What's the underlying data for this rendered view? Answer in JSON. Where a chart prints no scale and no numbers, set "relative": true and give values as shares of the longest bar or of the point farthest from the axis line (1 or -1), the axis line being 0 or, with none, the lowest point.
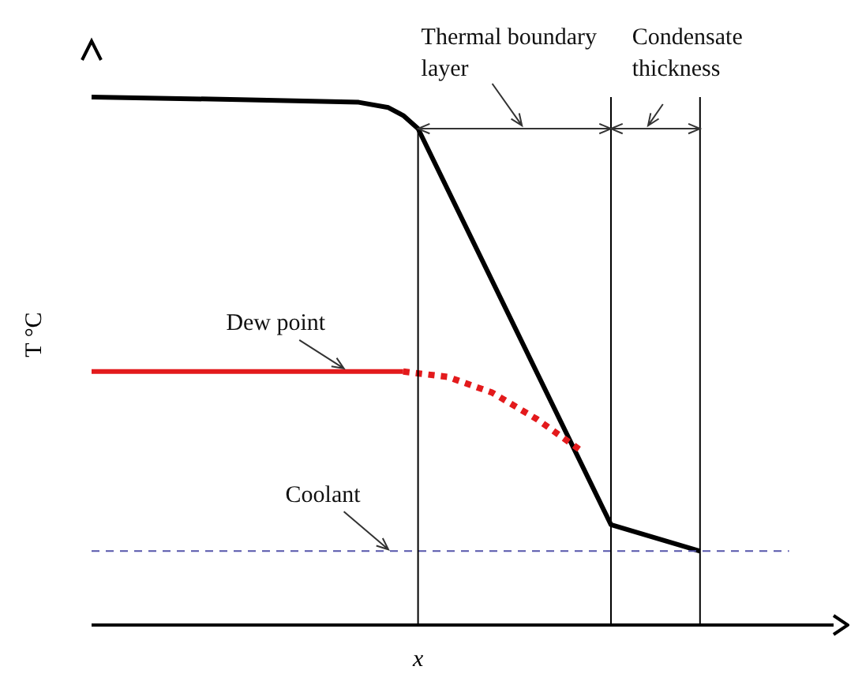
{
  "chart_data": {
    "type": "line",
    "relative": true,
    "ylabel": "T °C",
    "xlabel": "x",
    "categories": [
      null,
      null,
      null,
      null,
      null,
      null,
      null,
      null,
      null,
      null,
      null,
      null,
      null,
      null,
      null,
      null,
      null,
      null,
      null,
      null,
      null,
      null,
      null,
      null,
      null,
      null,
      null,
      null,
      null,
      null,
      null,
      null,
      null,
      null,
      null,
      null,
      null,
      null,
      null,
      null,
      null,
      null,
      null,
      null,
      null,
      null,
      null,
      null,
      null,
      null,
      null
    ],
    "series": [
      {
        "color": "#000000",
        "line_style": "solid",
        "values": [
          1,
          null,
          null,
          null,
          null,
          null,
          null,
          null,
          null,
          null,
          0.995,
          null,
          null,
          null,
          null,
          null,
          null,
          null,
          0.99,
          null,
          0.98,
          0.965,
          0.94,
          null,
          null,
          null,
          null,
          null,
          null,
          null,
          null,
          null,
          null,
          null,
          null,
          0.19,
          null,
          null,
          null,
          null,
          null,
          0.14,
          null,
          null,
          null,
          null,
          null,
          null,
          null,
          null,
          null
        ]
      },
      {
        "color": "#e31a1c",
        "line_style": "solid",
        "values": [
          0.48,
          null,
          null,
          null,
          null,
          null,
          null,
          null,
          null,
          null,
          null,
          null,
          null,
          null,
          null,
          null,
          null,
          null,
          null,
          null,
          null,
          0.48,
          null,
          null,
          null,
          null,
          null,
          null,
          null,
          null,
          null,
          null,
          null,
          null,
          null,
          null,
          null,
          null,
          null,
          null,
          null,
          null,
          null,
          null,
          null,
          null,
          null,
          null,
          null,
          null,
          null
        ]
      },
      {
        "color": "#e31a1c",
        "line_style": "dotted",
        "values": [
          null,
          null,
          null,
          null,
          null,
          null,
          null,
          null,
          null,
          null,
          null,
          null,
          null,
          null,
          null,
          null,
          null,
          null,
          null,
          null,
          null,
          0.48,
          null,
          null,
          0.47,
          null,
          null,
          0.44,
          null,
          null,
          0.39,
          null,
          null,
          0.33,
          null,
          null,
          null,
          null,
          null,
          null,
          null,
          null,
          null,
          null,
          null,
          null,
          null,
          null,
          null,
          null,
          null
        ]
      },
      {
        "color": "#5555aa",
        "line_style": "dashed",
        "values": [
          0.14,
          null,
          null,
          null,
          null,
          null,
          null,
          null,
          null,
          null,
          null,
          null,
          null,
          null,
          null,
          null,
          null,
          null,
          null,
          null,
          null,
          null,
          null,
          null,
          null,
          null,
          null,
          null,
          null,
          null,
          null,
          null,
          null,
          null,
          null,
          null,
          null,
          null,
          null,
          null,
          null,
          null,
          null,
          null,
          null,
          null,
          null,
          0.14,
          null,
          null,
          null
        ]
      }
    ],
    "annotations": [
      "Thermal boundary layer",
      "Condensate thickness",
      "Dew point",
      "Coolant"
    ]
  }
}
